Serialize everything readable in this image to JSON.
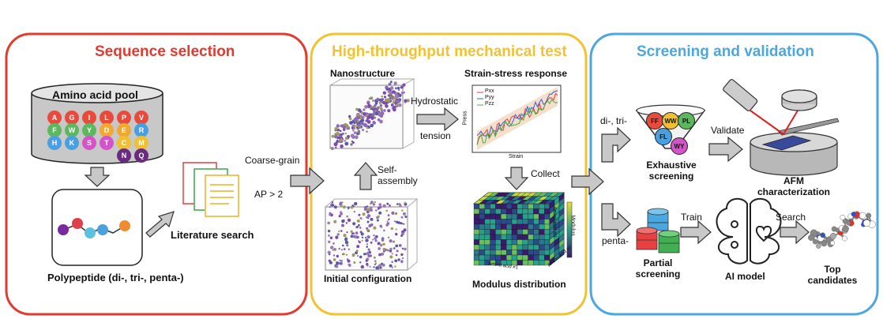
{
  "panels": {
    "sequence_selection": "Sequence selection",
    "mechanical_test": "High-throughput mechanical test",
    "screening_validation": "Screening and validation"
  },
  "colors": {
    "red": "#e23a2e",
    "yellow": "#f2c230",
    "blue": "#4aa7df"
  },
  "left": {
    "pool_label": "Amino acid pool",
    "amino_acids": [
      {
        "code": "A",
        "color": "#e84b3c"
      },
      {
        "code": "G",
        "color": "#e84b3c"
      },
      {
        "code": "I",
        "color": "#e84b3c"
      },
      {
        "code": "L",
        "color": "#e84b3c"
      },
      {
        "code": "P",
        "color": "#e84b3c"
      },
      {
        "code": "V",
        "color": "#e84b3c"
      },
      {
        "code": "F",
        "color": "#5cb85c"
      },
      {
        "code": "W",
        "color": "#5cb85c"
      },
      {
        "code": "Y",
        "color": "#5cb85c"
      },
      {
        "code": "D",
        "color": "#f0a830"
      },
      {
        "code": "E",
        "color": "#f0a830"
      },
      {
        "code": "R",
        "color": "#4a9fe0"
      },
      {
        "code": "H",
        "color": "#4a9fe0"
      },
      {
        "code": "K",
        "color": "#4a9fe0"
      },
      {
        "code": "S",
        "color": "#d553c8"
      },
      {
        "code": "T",
        "color": "#d553c8"
      },
      {
        "code": "C",
        "color": "#f0c030"
      },
      {
        "code": "M",
        "color": "#f0c030"
      },
      {
        "code": "N",
        "color": "#6a2a80"
      },
      {
        "code": "Q",
        "color": "#6a2a80"
      }
    ],
    "literature_search": "Literature search",
    "polypeptide": "Polypeptide  (di-, tri-, penta-)",
    "coarse_grain": "Coarse-grain",
    "ap_condition": "AP > 2"
  },
  "middle": {
    "nanostructure": "Nanostructure",
    "hydrostatic": "Hydrostatic",
    "tension": "tension",
    "strain_stress": "Strain-stress response",
    "legend": [
      "Pxx",
      "Pyy",
      "Pzz"
    ],
    "axis_y": "Press",
    "axis_x": "Strain",
    "self": "Self-",
    "assembly": "assembly",
    "collect": "Collect",
    "initial_config": "Initial configuration",
    "modulus_distribution": "Modulus distribution",
    "cube_modulus": "Modulus",
    "cube_aa_n": "Amino acid #N",
    "cube_aa_1": "Amino acid #1",
    "cube_aa_2": "Amino acid #2"
  },
  "right": {
    "di_tri": "di-, tri-",
    "penta": "penta-",
    "funnel_pills": [
      {
        "code": "FF",
        "color": "#e84b3c"
      },
      {
        "code": "WW",
        "color": "#f0c030"
      },
      {
        "code": "PL",
        "color": "#5cb85c"
      },
      {
        "code": "FL",
        "color": "#4a9fe0"
      },
      {
        "code": "WY",
        "color": "#d553c8"
      }
    ],
    "validate": "Validate",
    "exhaustive1": "Exhaustive",
    "exhaustive2": "screening",
    "afm1": "AFM",
    "afm2": "characterization",
    "train": "Train",
    "search": "Search",
    "partial1": "Partial",
    "partial2": "screening",
    "ai_model": "AI model",
    "top1": "Top",
    "top2": "candidates"
  }
}
